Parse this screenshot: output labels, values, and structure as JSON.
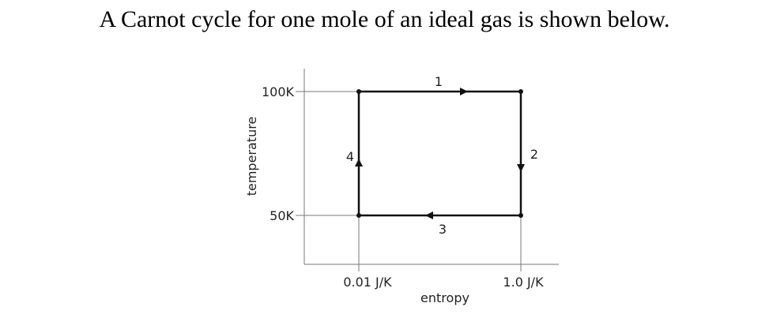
{
  "title": "A Carnot cycle for one mole of an ideal gas is shown below.",
  "diagram": {
    "y_axis_label": "temperature",
    "x_axis_label": "entropy",
    "y_ticks": [
      "100K",
      "50K"
    ],
    "x_ticks": [
      "0.01 J/K",
      "1.0 J/K"
    ],
    "process_labels": [
      "1",
      "2",
      "3",
      "4"
    ],
    "line_color": "#111111",
    "guide_color": "#777777"
  }
}
